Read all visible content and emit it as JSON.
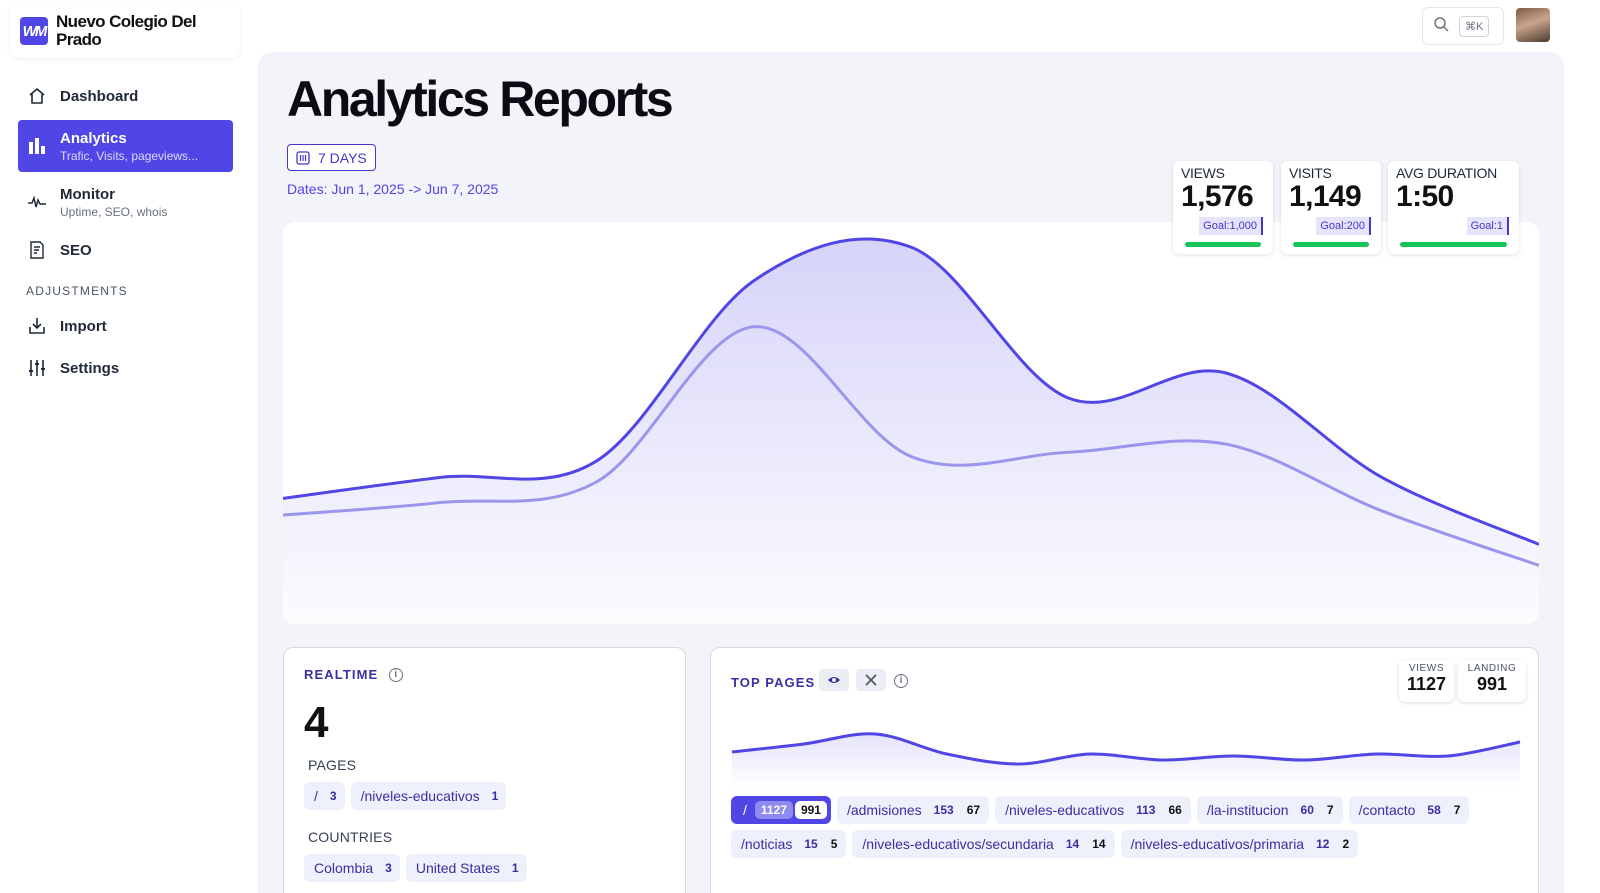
{
  "brand": {
    "logo_text": "WM",
    "name": "Nuevo Colegio Del Prado"
  },
  "nav": {
    "dashboard": "Dashboard",
    "analytics": {
      "label": "Analytics",
      "sub": "Trafic, Visits, pageviews..."
    },
    "monitor": {
      "label": "Monitor",
      "sub": "Uptime, SEO, whois"
    },
    "seo": "SEO",
    "section": "ADJUSTMENTS",
    "import": "Import",
    "settings": "Settings"
  },
  "search": {
    "shortcut": "⌘K"
  },
  "page": {
    "title": "Analytics Reports",
    "range_button": "7 DAYS",
    "dates": "Dates: Jun 1, 2025 -> Jun 7, 2025"
  },
  "stats": [
    {
      "label": "VIEWS",
      "value": "1,576",
      "goal": "Goal:1,000",
      "progress": 1.0
    },
    {
      "label": "VISITS",
      "value": "1,149",
      "goal": "Goal:200",
      "progress": 1.0
    },
    {
      "label": "AVG DURATION",
      "value": "1:50",
      "goal": "Goal:1",
      "progress": 1.0
    }
  ],
  "chart_data": {
    "type": "area",
    "series": [
      {
        "values": [
          150,
          175,
          195,
          410,
          450,
          270,
          300,
          175,
          95
        ]
      },
      {
        "values": [
          130,
          145,
          170,
          355,
          200,
          205,
          215,
          135,
          70
        ]
      }
    ],
    "colors": [
      "#4f46e5",
      "#9b95ec"
    ]
  },
  "realtime": {
    "title": "REALTIME",
    "count": "4",
    "pages_label": "PAGES",
    "pages": [
      {
        "path": "/",
        "n": "3"
      },
      {
        "path": "/niveles-educativos",
        "n": "1"
      }
    ],
    "countries_label": "COUNTRIES",
    "countries": [
      {
        "name": "Colombia",
        "n": "3"
      },
      {
        "name": "United States",
        "n": "1"
      }
    ]
  },
  "top_pages": {
    "title": "TOP PAGES",
    "views_label": "VIEWS",
    "views": "1127",
    "landing_label": "LANDING",
    "landing": "991",
    "rows": [
      [
        {
          "path": "/",
          "views": "1127",
          "landing": "991"
        },
        {
          "path": "/admisiones",
          "views": "153",
          "landing": "67"
        },
        {
          "path": "/niveles-educativos",
          "views": "113",
          "landing": "66"
        },
        {
          "path": "/la-institucion",
          "views": "60",
          "landing": "7"
        },
        {
          "path": "/contacto",
          "views": "58",
          "landing": "7"
        }
      ],
      [
        {
          "path": "/noticias",
          "views": "15",
          "landing": "5"
        },
        {
          "path": "/niveles-educativos/secundaria",
          "views": "14",
          "landing": "14"
        },
        {
          "path": "/niveles-educativos/primaria",
          "views": "12",
          "landing": "2"
        }
      ]
    ],
    "spark": [
      40,
      48,
      58,
      38,
      28,
      38,
      32,
      36,
      32,
      38,
      36,
      50
    ]
  }
}
